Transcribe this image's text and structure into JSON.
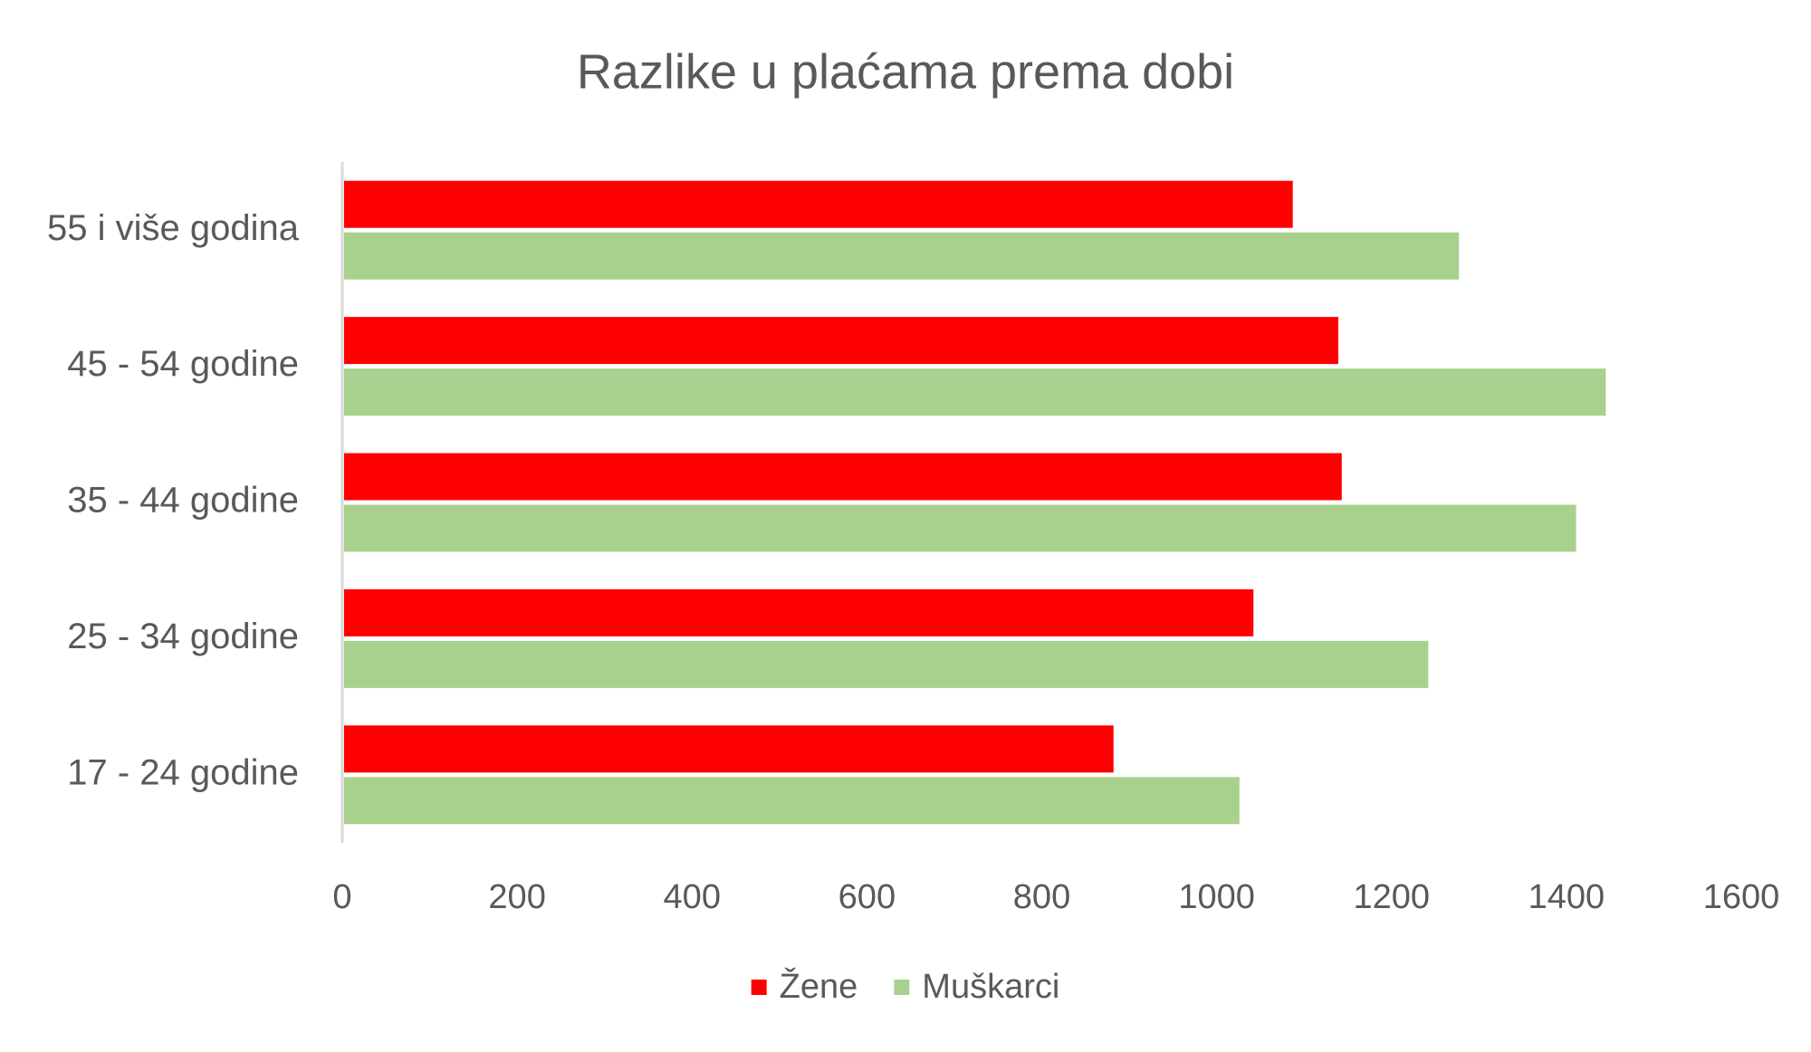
{
  "chart_data": {
    "type": "bar",
    "orientation": "horizontal",
    "title": "Razlike u plaćama prema dobi",
    "categories": [
      "17 - 24 godine",
      "25 - 34 godine",
      "35 - 44 godine",
      "45 - 54 godine",
      "55 i više godina"
    ],
    "series": [
      {
        "name": "Žene",
        "color": "#ff0000",
        "values": [
          880,
          1040,
          1141,
          1137,
          1085
        ]
      },
      {
        "name": "Muškarci",
        "color": "#a9d18e",
        "values": [
          1024,
          1240,
          1409,
          1443,
          1275
        ]
      }
    ],
    "xlim": [
      0,
      1600
    ],
    "xticks": [
      0,
      200,
      400,
      600,
      800,
      1000,
      1200,
      1400,
      1600
    ],
    "grid": false,
    "legend": "bottom"
  }
}
